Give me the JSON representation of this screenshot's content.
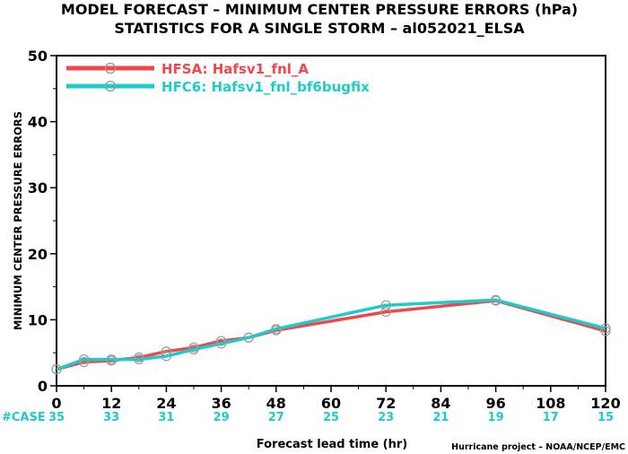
{
  "chart_data": {
    "type": "line",
    "title": "MODEL FORECAST – MINIMUM CENTER PRESSURE ERRORS (hPa)",
    "subtitle": "STATISTICS FOR A SINGLE STORM – al052021_ELSA",
    "xlabel": "Forecast lead time (hr)",
    "ylabel": "MINIMUM CENTER PRESSURE ERRORS",
    "xlim": [
      0,
      120
    ],
    "ylim": [
      0,
      50
    ],
    "xticks": [
      0,
      12,
      24,
      36,
      48,
      60,
      72,
      84,
      96,
      108,
      120
    ],
    "yticks": [
      0,
      10,
      20,
      30,
      40,
      50
    ],
    "grid": false,
    "legend_position": "top-left",
    "case_label": "#CASE",
    "case_counts": [
      35,
      33,
      31,
      29,
      27,
      25,
      23,
      21,
      19,
      17,
      15
    ],
    "credit": "Hurricane project – NOAA/NCEP/EMC",
    "series": [
      {
        "name": "HFSA: Hafsv1_fnl_A",
        "color": "#f0474a",
        "x": [
          0,
          6,
          12,
          18,
          24,
          30,
          36,
          42,
          48,
          72,
          96,
          120
        ],
        "y": [
          2.5,
          3.6,
          3.8,
          4.3,
          5.2,
          5.8,
          6.8,
          7.3,
          8.4,
          11.2,
          12.9,
          8.3
        ]
      },
      {
        "name": "HFC6: Hafsv1_fnl_bf6bugfix",
        "color": "#1ccccc",
        "x": [
          0,
          6,
          12,
          18,
          24,
          30,
          36,
          42,
          48,
          72,
          96,
          120
        ],
        "y": [
          2.5,
          4.0,
          4.0,
          4.0,
          4.5,
          5.5,
          6.4,
          7.3,
          8.6,
          12.2,
          13.0,
          8.7
        ]
      }
    ]
  }
}
